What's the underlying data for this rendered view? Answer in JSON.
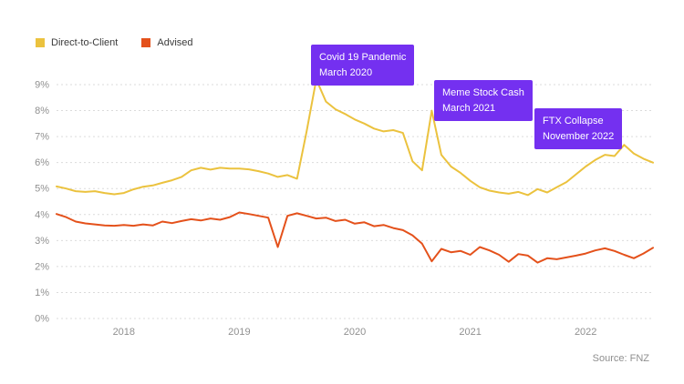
{
  "source": "Source: FNZ",
  "colors": {
    "direct_to_client": "#EBC23E",
    "advised": "#E4511B",
    "annotation_purple": "#7430F0",
    "gridline": "#DBDBDB",
    "axis_text": "#909090"
  },
  "chart_data": {
    "type": "line",
    "title": "",
    "xlabel": "",
    "ylabel": "",
    "ylim": [
      0,
      9
    ],
    "grid": "horizontal-dotted",
    "legend_position": "top-left",
    "y_ticks": [
      "0%",
      "1%",
      "2%",
      "3%",
      "4%",
      "5%",
      "6%",
      "7%",
      "8%",
      "9%"
    ],
    "x_ticks": [
      {
        "label": "2018",
        "t": 2018.5
      },
      {
        "label": "2019",
        "t": 2019.5
      },
      {
        "label": "2020",
        "t": 2020.5
      },
      {
        "label": "2021",
        "t": 2021.5
      },
      {
        "label": "2022",
        "t": 2022.5
      }
    ],
    "x": [
      2017.917,
      2018.0,
      2018.083,
      2018.167,
      2018.25,
      2018.333,
      2018.417,
      2018.5,
      2018.583,
      2018.667,
      2018.75,
      2018.833,
      2018.917,
      2019.0,
      2019.083,
      2019.167,
      2019.25,
      2019.333,
      2019.417,
      2019.5,
      2019.583,
      2019.667,
      2019.75,
      2019.833,
      2019.917,
      2020.0,
      2020.083,
      2020.167,
      2020.25,
      2020.333,
      2020.417,
      2020.5,
      2020.583,
      2020.667,
      2020.75,
      2020.833,
      2020.917,
      2021.0,
      2021.083,
      2021.167,
      2021.25,
      2021.333,
      2021.417,
      2021.5,
      2021.583,
      2021.667,
      2021.75,
      2021.833,
      2021.917,
      2022.0,
      2022.083,
      2022.167,
      2022.25,
      2022.333,
      2022.417,
      2022.5,
      2022.583,
      2022.667,
      2022.75,
      2022.833,
      2022.917,
      2023.0,
      2023.083
    ],
    "series": [
      {
        "name": "Direct-to-Client",
        "color": "#EBC23E",
        "values": [
          5.08,
          5.0,
          4.9,
          4.87,
          4.9,
          4.83,
          4.78,
          4.83,
          4.97,
          5.07,
          5.12,
          5.22,
          5.32,
          5.45,
          5.7,
          5.8,
          5.73,
          5.8,
          5.77,
          5.77,
          5.74,
          5.67,
          5.58,
          5.45,
          5.52,
          5.38,
          7.2,
          9.2,
          8.35,
          8.05,
          7.87,
          7.66,
          7.5,
          7.31,
          7.2,
          7.25,
          7.14,
          6.05,
          5.7,
          8.0,
          6.3,
          5.85,
          5.6,
          5.3,
          5.05,
          4.92,
          4.85,
          4.8,
          4.87,
          4.75,
          4.98,
          4.85,
          5.05,
          5.25,
          5.55,
          5.85,
          6.1,
          6.3,
          6.25,
          6.68,
          6.35,
          6.15,
          6.0
        ]
      },
      {
        "name": "Advised",
        "color": "#E4511B",
        "values": [
          4.02,
          3.9,
          3.73,
          3.66,
          3.62,
          3.58,
          3.57,
          3.6,
          3.57,
          3.62,
          3.58,
          3.73,
          3.67,
          3.75,
          3.82,
          3.77,
          3.85,
          3.8,
          3.9,
          4.08,
          4.02,
          3.95,
          3.88,
          2.75,
          3.95,
          4.05,
          3.95,
          3.85,
          3.88,
          3.75,
          3.8,
          3.65,
          3.7,
          3.55,
          3.6,
          3.48,
          3.4,
          3.2,
          2.88,
          2.2,
          2.68,
          2.55,
          2.6,
          2.45,
          2.75,
          2.62,
          2.45,
          2.18,
          2.48,
          2.42,
          2.15,
          2.32,
          2.28,
          2.35,
          2.42,
          2.5,
          2.62,
          2.7,
          2.6,
          2.45,
          2.32,
          2.5,
          2.72
        ]
      }
    ],
    "annotations": [
      {
        "lines": [
          "Covid 19 Pandemic",
          "March 2020"
        ],
        "color": "#7430F0"
      },
      {
        "lines": [
          "Meme Stock Cash",
          "March 2021"
        ],
        "color": "#7430F0"
      },
      {
        "lines": [
          "FTX Collapse",
          "November 2022"
        ],
        "color": "#7430F0"
      }
    ]
  }
}
